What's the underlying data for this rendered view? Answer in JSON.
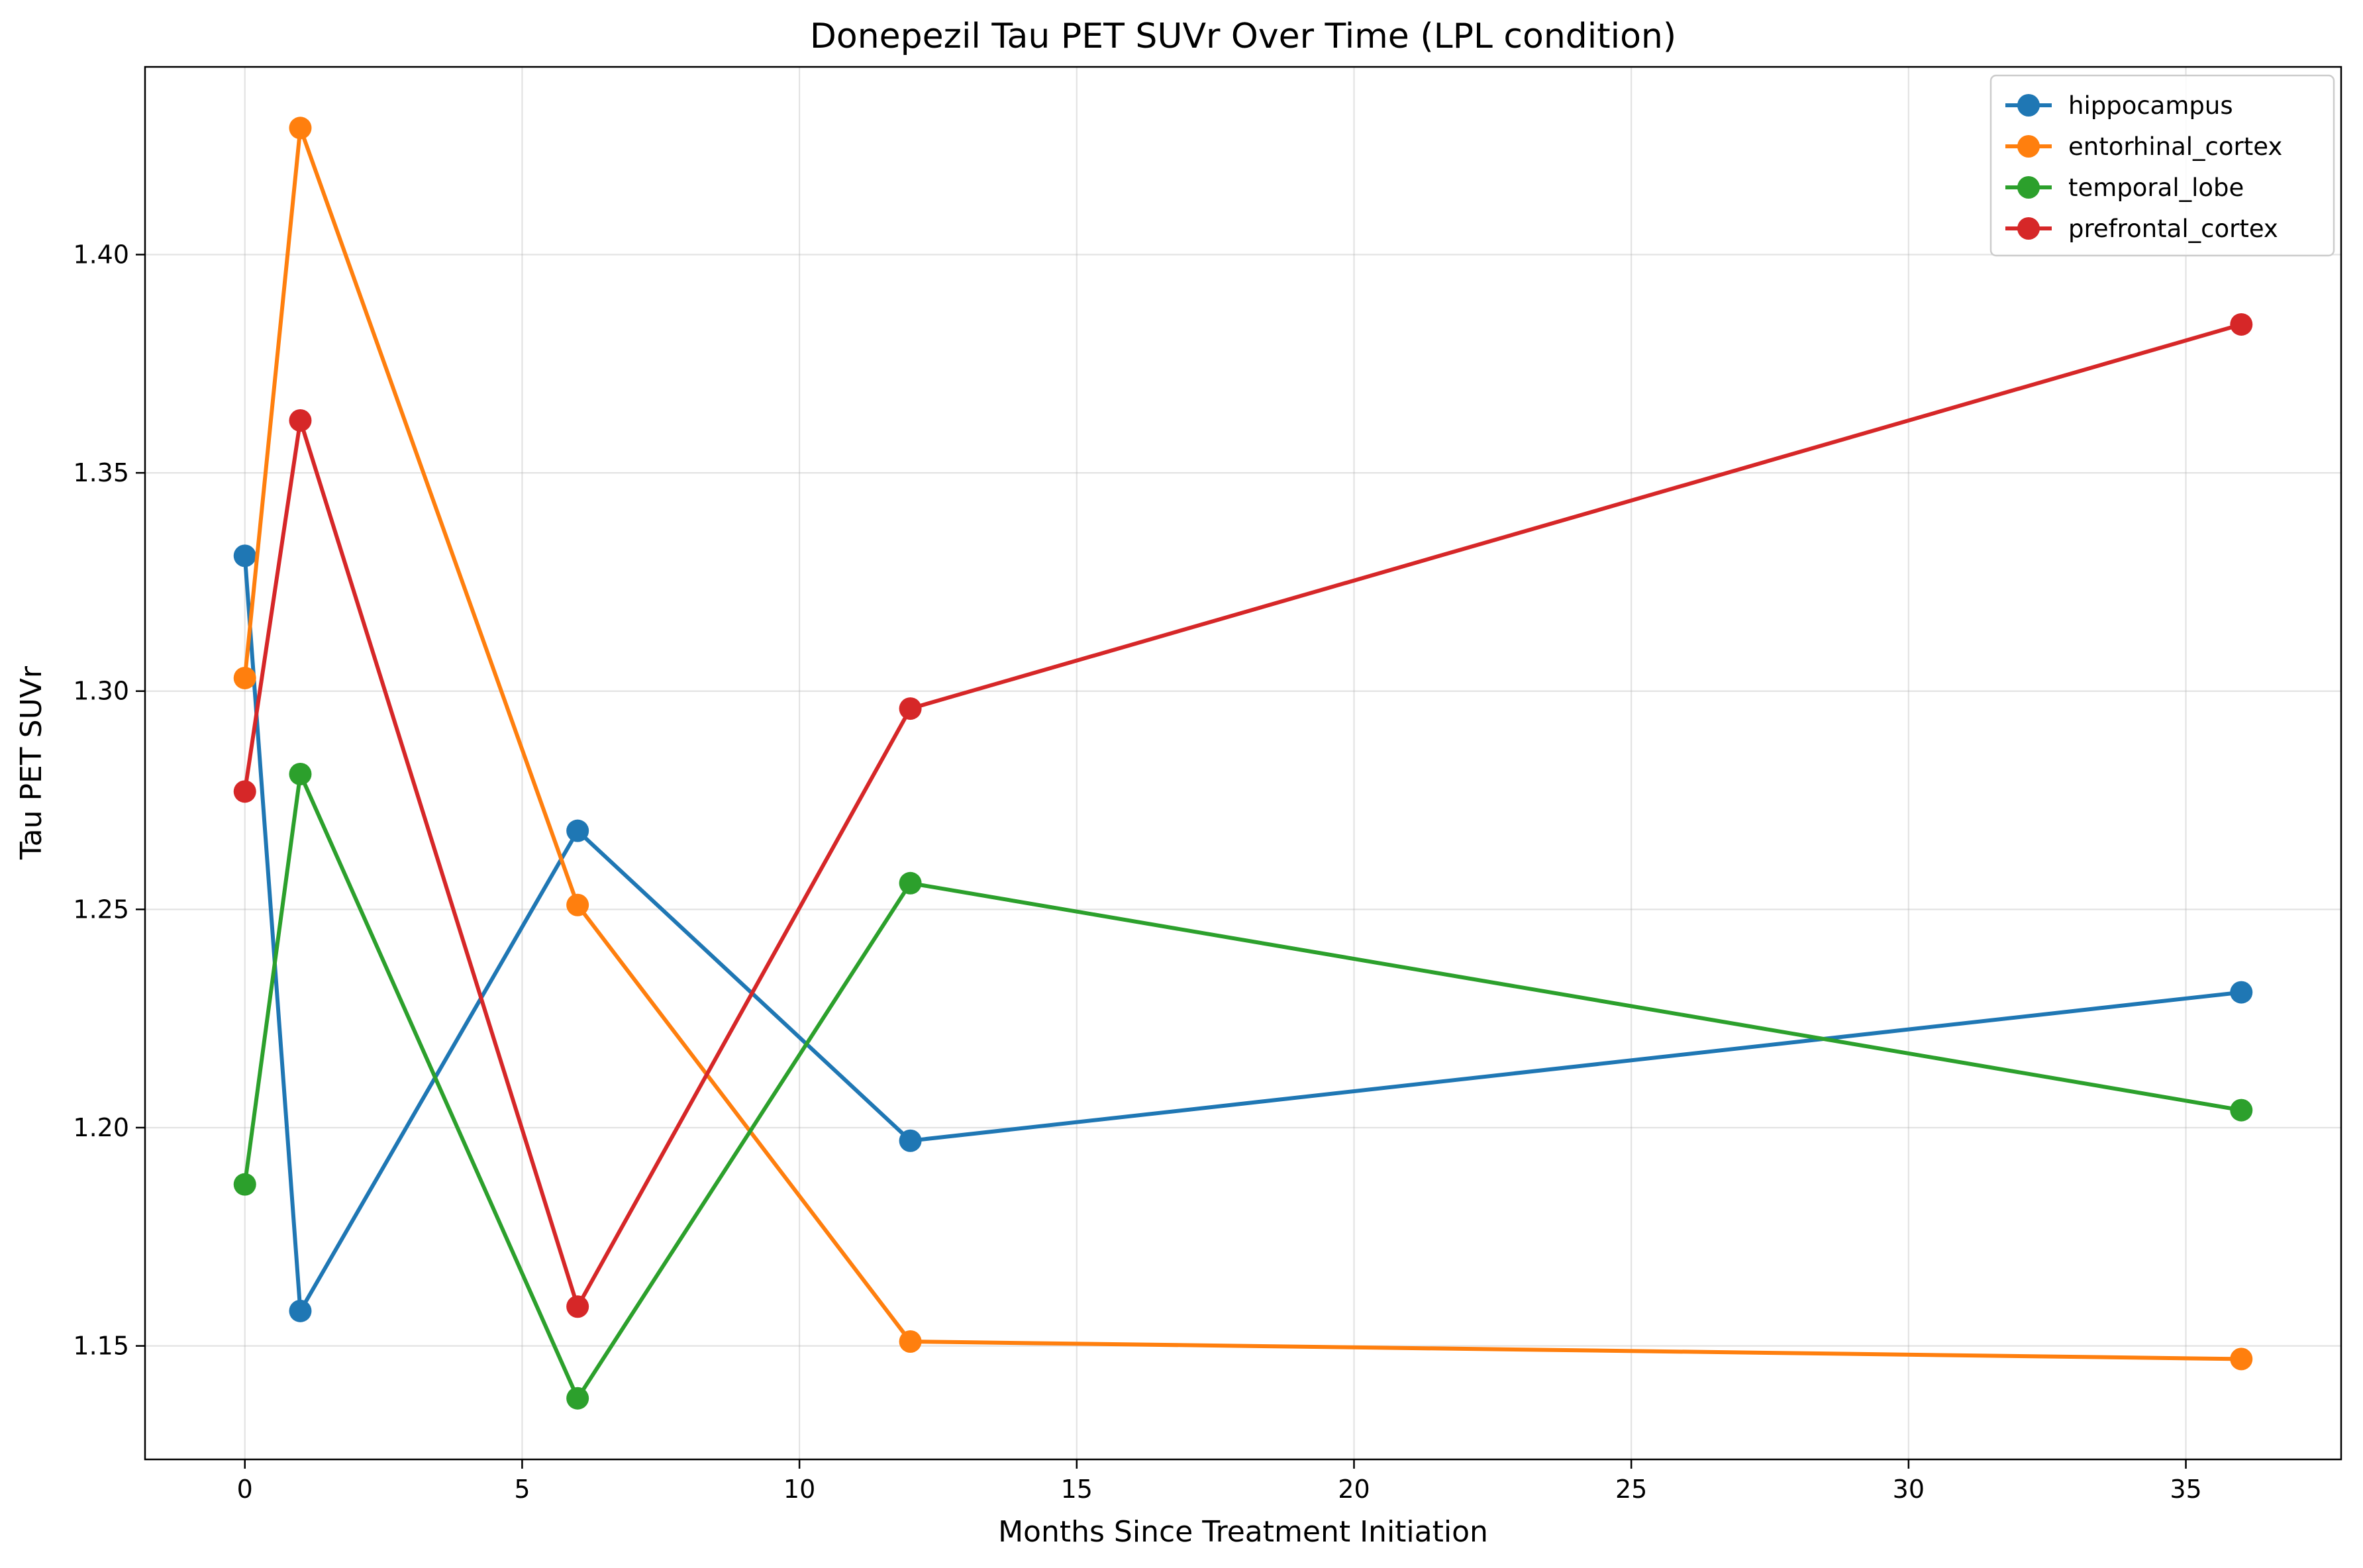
{
  "chart_data": {
    "type": "line",
    "title": "Donepezil Tau PET SUVr Over Time (LPL condition)",
    "xlabel": "Months Since Treatment Initiation",
    "ylabel": "Tau PET SUVr",
    "xlim": [
      -1.8,
      37.8
    ],
    "ylim": [
      1.124,
      1.443
    ],
    "xticks": [
      0,
      5,
      10,
      15,
      20,
      25,
      30,
      35
    ],
    "xtick_labels": [
      "0",
      "5",
      "10",
      "15",
      "20",
      "25",
      "30",
      "35"
    ],
    "yticks": [
      1.15,
      1.2,
      1.25,
      1.3,
      1.35,
      1.4
    ],
    "ytick_labels": [
      "1.15",
      "1.20",
      "1.25",
      "1.30",
      "1.35",
      "1.40"
    ],
    "grid": true,
    "legend_position": "top-right",
    "x": [
      0,
      1,
      6,
      12,
      36
    ],
    "series": [
      {
        "name": "hippocampus",
        "color": "#1f77b4",
        "values": [
          1.331,
          1.158,
          1.268,
          1.197,
          1.231
        ]
      },
      {
        "name": "entorhinal_cortex",
        "color": "#ff7f0e",
        "values": [
          1.303,
          1.429,
          1.251,
          1.151,
          1.147
        ]
      },
      {
        "name": "temporal_lobe",
        "color": "#2ca02c",
        "values": [
          1.187,
          1.281,
          1.138,
          1.256,
          1.204
        ]
      },
      {
        "name": "prefrontal_cortex",
        "color": "#d62728",
        "values": [
          1.277,
          1.362,
          1.159,
          1.296,
          1.384
        ]
      }
    ]
  }
}
